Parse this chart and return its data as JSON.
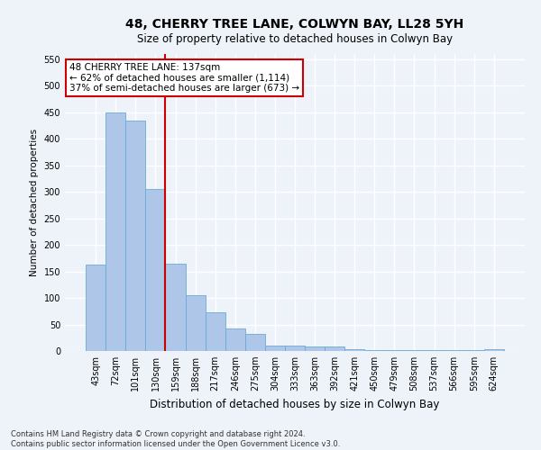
{
  "title": "48, CHERRY TREE LANE, COLWYN BAY, LL28 5YH",
  "subtitle": "Size of property relative to detached houses in Colwyn Bay",
  "xlabel": "Distribution of detached houses by size in Colwyn Bay",
  "ylabel": "Number of detached properties",
  "categories": [
    "43sqm",
    "72sqm",
    "101sqm",
    "130sqm",
    "159sqm",
    "188sqm",
    "217sqm",
    "246sqm",
    "275sqm",
    "304sqm",
    "333sqm",
    "363sqm",
    "392sqm",
    "421sqm",
    "450sqm",
    "479sqm",
    "508sqm",
    "537sqm",
    "566sqm",
    "595sqm",
    "624sqm"
  ],
  "values": [
    163,
    450,
    435,
    305,
    165,
    106,
    73,
    43,
    32,
    10,
    10,
    8,
    8,
    4,
    2,
    1,
    1,
    1,
    1,
    1,
    4
  ],
  "bar_color": "#aec6e8",
  "bar_edge_color": "#6aaad4",
  "vline_x": 3.5,
  "vline_color": "#cc0000",
  "annotation_text": "48 CHERRY TREE LANE: 137sqm\n← 62% of detached houses are smaller (1,114)\n37% of semi-detached houses are larger (673) →",
  "annotation_box_color": "#ffffff",
  "annotation_box_edge_color": "#cc0000",
  "ylim": [
    0,
    560
  ],
  "yticks": [
    0,
    50,
    100,
    150,
    200,
    250,
    300,
    350,
    400,
    450,
    500,
    550
  ],
  "footnote": "Contains HM Land Registry data © Crown copyright and database right 2024.\nContains public sector information licensed under the Open Government Licence v3.0.",
  "background_color": "#eef2f9",
  "grid_color": "#ffffff",
  "title_fontsize": 10,
  "subtitle_fontsize": 8.5,
  "xlabel_fontsize": 8.5,
  "ylabel_fontsize": 7.5,
  "tick_fontsize": 7.0,
  "annotation_fontsize": 7.5,
  "footnote_fontsize": 6.0
}
